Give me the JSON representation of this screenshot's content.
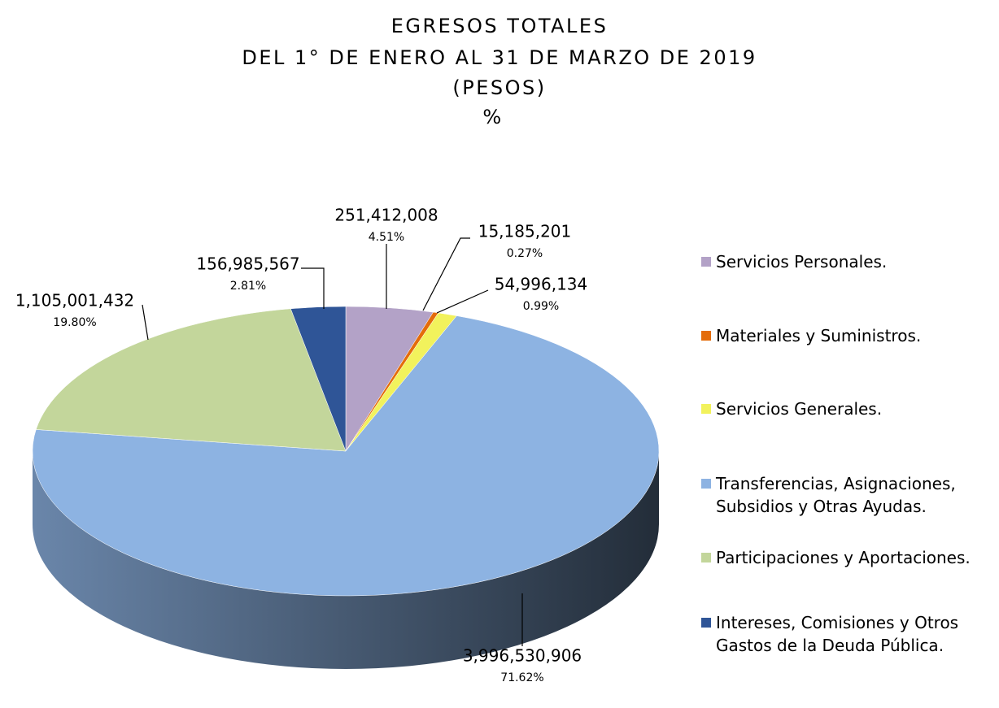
{
  "chart_data": {
    "type": "pie3d",
    "title_lines": [
      "EGRESOS TOTALES",
      "DEL 1° DE ENERO AL 31 DE MARZO DE 2019",
      "(PESOS)",
      "%"
    ],
    "categories": [
      "Servicios Personales.",
      "Materiales y Suministros.",
      "Servicios Generales.",
      "Transferencias, Asignaciones, Subsidios y Otras Ayudas.",
      "Participaciones y Aportaciones.",
      "Intereses, Comisiones y Otros Gastos de la Deuda Pública."
    ],
    "values": [
      251412008,
      15185201,
      54996134,
      3996530906,
      1105001432,
      156985567
    ],
    "value_labels": [
      "251,412,008",
      "15,185,201",
      "54,996,134",
      "3,996,530,906",
      "1,105,001,432",
      "156,985,567"
    ],
    "percentages": [
      4.51,
      0.27,
      0.99,
      71.62,
      19.8,
      2.81
    ],
    "percentage_labels": [
      "4.51%",
      "0.27%",
      "0.99%",
      "71.62%",
      "19.80%",
      "2.81%"
    ],
    "colors": [
      "#b3a2c7",
      "#e46c0a",
      "#f2f25c",
      "#8db3e2",
      "#c3d69b",
      "#2f5597"
    ],
    "legend": "right"
  }
}
